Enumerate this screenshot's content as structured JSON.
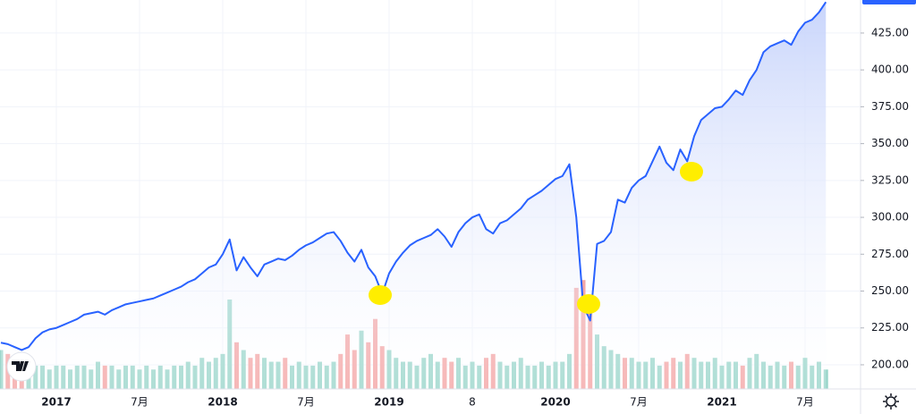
{
  "chart_data": {
    "type": "line",
    "categories": [
      null,
      null,
      null,
      null,
      null,
      null,
      null,
      null,
      "2017",
      null,
      null,
      null,
      null,
      null,
      null,
      null,
      null,
      null,
      null,
      null,
      "7月",
      null,
      null,
      null,
      null,
      null,
      null,
      null,
      null,
      null,
      null,
      null,
      "2018",
      null,
      null,
      null,
      null,
      null,
      null,
      null,
      null,
      null,
      null,
      null,
      "7月",
      null,
      null,
      null,
      null,
      null,
      null,
      null,
      null,
      null,
      null,
      null,
      "2019",
      null,
      null,
      null,
      null,
      null,
      null,
      null,
      null,
      null,
      null,
      null,
      "8",
      null,
      null,
      null,
      null,
      null,
      null,
      null,
      null,
      null,
      null,
      null,
      "2020",
      null,
      null,
      null,
      null,
      null,
      null,
      null,
      null,
      null,
      null,
      null,
      "7月",
      null,
      null,
      null,
      null,
      null,
      null,
      null,
      null,
      null,
      null,
      null,
      "2021",
      null,
      null,
      null,
      null,
      null,
      null,
      null,
      null,
      null,
      null,
      null,
      "7月",
      null,
      null,
      null
    ],
    "series": [
      {
        "color": "#2962ff",
        "fill_color": "#c6d3fb",
        "values": [
          215,
          214,
          212,
          210,
          212,
          218,
          222,
          224,
          225,
          227,
          229,
          231,
          234,
          235,
          236,
          234,
          237,
          239,
          241,
          242,
          243,
          244,
          245,
          247,
          249,
          251,
          253,
          256,
          258,
          262,
          266,
          268,
          275,
          285,
          264,
          273,
          266,
          260,
          268,
          270,
          272,
          271,
          274,
          278,
          281,
          283,
          286,
          289,
          290,
          284,
          276,
          270,
          278,
          266,
          260,
          248,
          262,
          270,
          276,
          281,
          284,
          286,
          288,
          292,
          287,
          280,
          290,
          296,
          300,
          302,
          292,
          289,
          296,
          298,
          302,
          306,
          312,
          315,
          318,
          322,
          326,
          328,
          336,
          300,
          240,
          230,
          282,
          284,
          290,
          312,
          310,
          320,
          325,
          328,
          338,
          348,
          337,
          332,
          346,
          338,
          355,
          366,
          370,
          374,
          375,
          380,
          386,
          383,
          393,
          400,
          412,
          416,
          418,
          420,
          417,
          426,
          432,
          434,
          439,
          446
        ]
      },
      {
        "type": "bar",
        "axis": "y2",
        "up_color": "#9bd6cb",
        "down_color": "#f4a6a6",
        "values": [
          10,
          9,
          8,
          7,
          8,
          6,
          6,
          5,
          6,
          6,
          5,
          6,
          6,
          5,
          7,
          6,
          6,
          5,
          6,
          6,
          5,
          6,
          5,
          6,
          5,
          6,
          6,
          7,
          6,
          8,
          7,
          8,
          9,
          23,
          12,
          10,
          8,
          9,
          8,
          7,
          7,
          8,
          6,
          7,
          6,
          6,
          7,
          6,
          7,
          9,
          14,
          10,
          15,
          12,
          18,
          11,
          10,
          8,
          7,
          7,
          6,
          8,
          9,
          7,
          8,
          7,
          8,
          6,
          7,
          6,
          8,
          9,
          7,
          6,
          7,
          8,
          6,
          6,
          7,
          6,
          7,
          7,
          9,
          26,
          28,
          22,
          14,
          11,
          10,
          9,
          8,
          8,
          7,
          7,
          8,
          6,
          7,
          8,
          7,
          9,
          8,
          7,
          7,
          8,
          6,
          7,
          7,
          6,
          8,
          9,
          7,
          6,
          7,
          6,
          7,
          6,
          8,
          6,
          7,
          5
        ]
      }
    ],
    "ylim": [
      183.6,
      447.4
    ],
    "yticks": [
      {
        "value": 200,
        "label": "200.00"
      },
      {
        "value": 225,
        "label": "225.00"
      },
      {
        "value": 250,
        "label": "250.00"
      },
      {
        "value": 275,
        "label": "275.00"
      },
      {
        "value": 300,
        "label": "300.00"
      },
      {
        "value": 325,
        "label": "325.00"
      },
      {
        "value": 350,
        "label": "350.00"
      },
      {
        "value": 375,
        "label": "375.00"
      },
      {
        "value": 400,
        "label": "400.00"
      },
      {
        "value": 425,
        "label": "425.00"
      }
    ],
    "y2lim": [
      0,
      100
    ],
    "grid": true
  }
}
